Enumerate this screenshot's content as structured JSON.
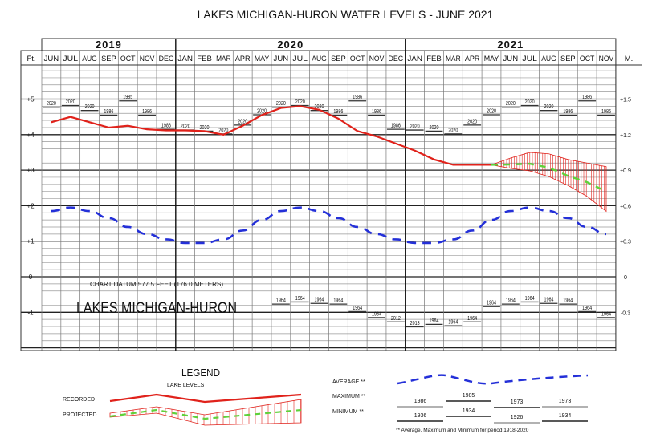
{
  "title": "LAKES MICHIGAN-HURON WATER LEVELS - JUNE 2021",
  "chart_data": {
    "type": "line",
    "title": "LAKES MICHIGAN-HURON WATER LEVELS - JUNE 2021",
    "left_axis_label": "Ft.",
    "right_axis_label": "M.",
    "years": [
      {
        "label": "2019",
        "months": 7
      },
      {
        "label": "2020",
        "months": 12
      },
      {
        "label": "2021",
        "months": 11
      }
    ],
    "months": [
      "JUN",
      "JUL",
      "AUG",
      "SEP",
      "OCT",
      "NOV",
      "DEC",
      "JAN",
      "FEB",
      "MAR",
      "APR",
      "MAY",
      "JUN",
      "JUL",
      "AUG",
      "SEP",
      "OCT",
      "NOV",
      "DEC",
      "JAN",
      "FEB",
      "MAR",
      "APR",
      "MAY",
      "JUN",
      "JUL",
      "AUG",
      "SEP",
      "OCT",
      "NOV"
    ],
    "ylim_ft": [
      -2.05,
      6.0
    ],
    "grid": true,
    "y_ticks_ft": [
      {
        "v": 5,
        "label": "+5"
      },
      {
        "v": 4,
        "label": "+4"
      },
      {
        "v": 3,
        "label": "+3"
      },
      {
        "v": 2,
        "label": "+2"
      },
      {
        "v": 1,
        "label": "+1"
      },
      {
        "v": 0,
        "label": "0"
      },
      {
        "v": -1,
        "label": "-1"
      }
    ],
    "y_ticks_m": [
      {
        "v": 5,
        "label": "+1.5"
      },
      {
        "v": 4,
        "label": "+1.2"
      },
      {
        "v": 3,
        "label": "+0.9"
      },
      {
        "v": 2,
        "label": "+0.6"
      },
      {
        "v": 1,
        "label": "+0.3"
      },
      {
        "v": 0,
        "label": "0"
      },
      {
        "v": -1,
        "label": "-0.3"
      }
    ],
    "recorded": [
      4.35,
      4.5,
      4.35,
      4.2,
      4.25,
      4.15,
      4.12,
      4.12,
      4.1,
      4.0,
      4.25,
      4.55,
      4.75,
      4.8,
      4.7,
      4.45,
      4.1,
      3.95,
      3.75,
      3.55,
      3.3,
      3.15,
      3.15,
      3.15,
      null,
      null,
      null,
      null,
      null,
      null
    ],
    "projected": [
      null,
      null,
      null,
      null,
      null,
      null,
      null,
      null,
      null,
      null,
      null,
      null,
      null,
      null,
      null,
      null,
      null,
      null,
      null,
      null,
      null,
      null,
      null,
      3.15,
      3.16,
      3.18,
      3.07,
      2.84,
      2.66,
      2.4
    ],
    "projected_max": [
      null,
      null,
      null,
      null,
      null,
      null,
      null,
      null,
      null,
      null,
      null,
      null,
      null,
      null,
      null,
      null,
      null,
      null,
      null,
      null,
      null,
      null,
      null,
      3.15,
      3.34,
      3.5,
      3.46,
      3.3,
      3.2,
      3.1
    ],
    "projected_min": [
      null,
      null,
      null,
      null,
      null,
      null,
      null,
      null,
      null,
      null,
      null,
      null,
      null,
      null,
      null,
      null,
      null,
      null,
      null,
      null,
      null,
      null,
      null,
      3.15,
      3.05,
      2.98,
      2.82,
      2.57,
      2.26,
      1.84
    ],
    "average": [
      1.85,
      1.95,
      1.85,
      1.65,
      1.4,
      1.2,
      1.05,
      0.95,
      0.95,
      1.05,
      1.3,
      1.6,
      1.85,
      1.95,
      1.85,
      1.65,
      1.4,
      1.2,
      1.05,
      0.95,
      0.95,
      1.05,
      1.3,
      1.6,
      1.85,
      1.95,
      1.85,
      1.65,
      1.4,
      1.2
    ],
    "maximum_records": [
      {
        "v": 4.77,
        "year": "2020"
      },
      {
        "v": 4.82,
        "year": "2020"
      },
      {
        "v": 4.68,
        "year": "2020"
      },
      {
        "v": 4.55,
        "year": "1986"
      },
      {
        "v": 4.95,
        "year": "1985"
      },
      {
        "v": 4.55,
        "year": "1986"
      },
      {
        "v": 4.15,
        "year": "1986"
      },
      {
        "v": 4.13,
        "year": "2020"
      },
      {
        "v": 4.1,
        "year": "2020"
      },
      {
        "v": 4.02,
        "year": "2020"
      },
      {
        "v": 4.27,
        "year": "2020"
      },
      {
        "v": 4.56,
        "year": "2020"
      },
      {
        "v": 4.77,
        "year": "2020"
      },
      {
        "v": 4.82,
        "year": "2020"
      },
      {
        "v": 4.68,
        "year": "2020"
      },
      {
        "v": 4.55,
        "year": "1986"
      },
      {
        "v": 4.95,
        "year": "1986"
      },
      {
        "v": 4.55,
        "year": "1986"
      },
      {
        "v": 4.15,
        "year": "1986"
      },
      {
        "v": 4.13,
        "year": "2020"
      },
      {
        "v": 4.1,
        "year": "2020"
      },
      {
        "v": 4.02,
        "year": "2020"
      },
      {
        "v": 4.27,
        "year": "2020"
      },
      {
        "v": 4.56,
        "year": "2020"
      },
      {
        "v": 4.77,
        "year": "2020"
      },
      {
        "v": 4.82,
        "year": "2020"
      },
      {
        "v": 4.68,
        "year": "2020"
      },
      {
        "v": 4.55,
        "year": "1986"
      },
      {
        "v": 4.95,
        "year": "1986"
      },
      {
        "v": 4.55,
        "year": "1986"
      }
    ],
    "minimum_records": [
      null,
      null,
      null,
      null,
      null,
      null,
      null,
      null,
      null,
      null,
      null,
      null,
      {
        "v": -0.77,
        "year": "1964"
      },
      {
        "v": -0.71,
        "year": "1964"
      },
      {
        "v": -0.75,
        "year": "1964"
      },
      {
        "v": -0.77,
        "year": "1964"
      },
      {
        "v": -0.98,
        "year": "1964"
      },
      {
        "v": -1.15,
        "year": "1964"
      },
      {
        "v": -1.27,
        "year": "2012"
      },
      {
        "v": -1.41,
        "year": "2013"
      },
      {
        "v": -1.34,
        "year": "1964"
      },
      {
        "v": -1.38,
        "year": "1964"
      },
      {
        "v": -1.27,
        "year": "1964"
      },
      {
        "v": -0.84,
        "year": "1964"
      },
      {
        "v": -0.77,
        "year": "1964"
      },
      {
        "v": -0.71,
        "year": "1964"
      },
      {
        "v": -0.75,
        "year": "1964"
      },
      {
        "v": -0.77,
        "year": "1964"
      },
      {
        "v": -0.98,
        "year": "1964"
      },
      {
        "v": -1.15,
        "year": "1964"
      }
    ],
    "colors": {
      "recorded": "#e0221b",
      "projected": "#5fd13a",
      "range": "#e0221b",
      "average": "#2430d8"
    }
  },
  "annotations": {
    "datum": "CHART DATUM  577.5 FEET  (176.0 METERS)",
    "lake_name": "LAKES MICHIGAN-HURON"
  },
  "legend": {
    "title": "LEGEND",
    "subtitle": "LAKE LEVELS",
    "recorded": "RECORDED",
    "projected": "PROJECTED",
    "average": "AVERAGE **",
    "maximum": "MAXIMUM **",
    "minimum": "MINIMUM **",
    "max_samples": [
      "1986",
      "1985",
      "1973",
      "1973"
    ],
    "min_samples": [
      "1936",
      "1934",
      "1926",
      "1934"
    ],
    "footnote": "** Average, Maximum and Minimum for period 1918-2020"
  }
}
